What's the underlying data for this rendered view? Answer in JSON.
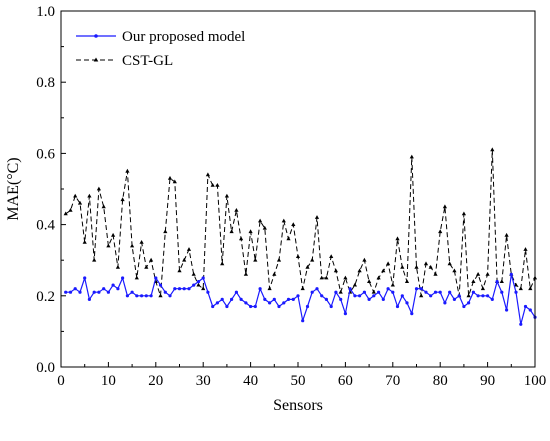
{
  "chart_data": {
    "type": "line",
    "xlabel": "Sensors",
    "ylabel": "MAE(°C)",
    "xlim": [
      0,
      100
    ],
    "ylim": [
      0.0,
      1.0
    ],
    "x_ticks": [
      "0",
      "10",
      "20",
      "30",
      "40",
      "50",
      "60",
      "70",
      "80",
      "90",
      "100"
    ],
    "y_ticks": [
      "0.0",
      "0.2",
      "0.4",
      "0.6",
      "0.8",
      "1.0"
    ],
    "legend_position": "top-left",
    "grid": false,
    "series": [
      {
        "name": "Our proposed model",
        "color": "#1a1aff",
        "line_style": "solid",
        "marker": "dot",
        "x": [
          1,
          2,
          3,
          4,
          5,
          6,
          7,
          8,
          9,
          10,
          11,
          12,
          13,
          14,
          15,
          16,
          17,
          18,
          19,
          20,
          21,
          22,
          23,
          24,
          25,
          26,
          27,
          28,
          29,
          30,
          31,
          32,
          33,
          34,
          35,
          36,
          37,
          38,
          39,
          40,
          41,
          42,
          43,
          44,
          45,
          46,
          47,
          48,
          49,
          50,
          51,
          52,
          53,
          54,
          55,
          56,
          57,
          58,
          59,
          60,
          61,
          62,
          63,
          64,
          65,
          66,
          67,
          68,
          69,
          70,
          71,
          72,
          73,
          74,
          75,
          76,
          77,
          78,
          79,
          80,
          81,
          82,
          83,
          84,
          85,
          86,
          87,
          88,
          89,
          90,
          91,
          92,
          93,
          94,
          95,
          96,
          97,
          98,
          99,
          100
        ],
        "values": [
          0.21,
          0.21,
          0.22,
          0.21,
          0.25,
          0.19,
          0.21,
          0.21,
          0.22,
          0.21,
          0.23,
          0.22,
          0.25,
          0.2,
          0.21,
          0.2,
          0.2,
          0.2,
          0.2,
          0.25,
          0.23,
          0.21,
          0.2,
          0.22,
          0.22,
          0.22,
          0.22,
          0.23,
          0.24,
          0.25,
          0.21,
          0.17,
          0.18,
          0.19,
          0.17,
          0.19,
          0.21,
          0.19,
          0.18,
          0.17,
          0.17,
          0.22,
          0.19,
          0.18,
          0.19,
          0.17,
          0.18,
          0.19,
          0.19,
          0.2,
          0.13,
          0.17,
          0.21,
          0.22,
          0.2,
          0.19,
          0.17,
          0.21,
          0.19,
          0.15,
          0.22,
          0.2,
          0.2,
          0.21,
          0.19,
          0.2,
          0.21,
          0.19,
          0.22,
          0.21,
          0.17,
          0.2,
          0.18,
          0.15,
          0.22,
          0.22,
          0.21,
          0.2,
          0.21,
          0.21,
          0.18,
          0.21,
          0.19,
          0.2,
          0.17,
          0.18,
          0.21,
          0.2,
          0.2,
          0.2,
          0.19,
          0.24,
          0.21,
          0.16,
          0.26,
          0.21,
          0.12,
          0.17,
          0.16,
          0.14
        ]
      },
      {
        "name": "CST-GL",
        "color": "#000000",
        "line_style": "dashed",
        "marker": "triangle",
        "x": [
          1,
          2,
          3,
          4,
          5,
          6,
          7,
          8,
          9,
          10,
          11,
          12,
          13,
          14,
          15,
          16,
          17,
          18,
          19,
          20,
          21,
          22,
          23,
          24,
          25,
          26,
          27,
          28,
          29,
          30,
          31,
          32,
          33,
          34,
          35,
          36,
          37,
          38,
          39,
          40,
          41,
          42,
          43,
          44,
          45,
          46,
          47,
          48,
          49,
          50,
          51,
          52,
          53,
          54,
          55,
          56,
          57,
          58,
          59,
          60,
          61,
          62,
          63,
          64,
          65,
          66,
          67,
          68,
          69,
          70,
          71,
          72,
          73,
          74,
          75,
          76,
          77,
          78,
          79,
          80,
          81,
          82,
          83,
          84,
          85,
          86,
          87,
          88,
          89,
          90,
          91,
          92,
          93,
          94,
          95,
          96,
          97,
          98,
          99,
          100
        ],
        "values": [
          0.43,
          0.44,
          0.48,
          0.46,
          0.35,
          0.48,
          0.3,
          0.5,
          0.45,
          0.34,
          0.37,
          0.28,
          0.47,
          0.55,
          0.34,
          0.25,
          0.35,
          0.28,
          0.3,
          0.24,
          0.2,
          0.38,
          0.53,
          0.52,
          0.27,
          0.3,
          0.33,
          0.26,
          0.23,
          0.22,
          0.54,
          0.51,
          0.51,
          0.29,
          0.48,
          0.38,
          0.44,
          0.36,
          0.26,
          0.38,
          0.3,
          0.41,
          0.39,
          0.22,
          0.26,
          0.3,
          0.41,
          0.36,
          0.4,
          0.31,
          0.22,
          0.28,
          0.3,
          0.42,
          0.25,
          0.25,
          0.31,
          0.27,
          0.21,
          0.25,
          0.21,
          0.23,
          0.27,
          0.3,
          0.24,
          0.21,
          0.25,
          0.27,
          0.29,
          0.23,
          0.36,
          0.28,
          0.24,
          0.59,
          0.28,
          0.2,
          0.29,
          0.28,
          0.26,
          0.38,
          0.45,
          0.29,
          0.27,
          0.2,
          0.43,
          0.2,
          0.24,
          0.26,
          0.22,
          0.26,
          0.61,
          0.24,
          0.24,
          0.37,
          0.26,
          0.23,
          0.22,
          0.33,
          0.22,
          0.25
        ]
      }
    ]
  }
}
